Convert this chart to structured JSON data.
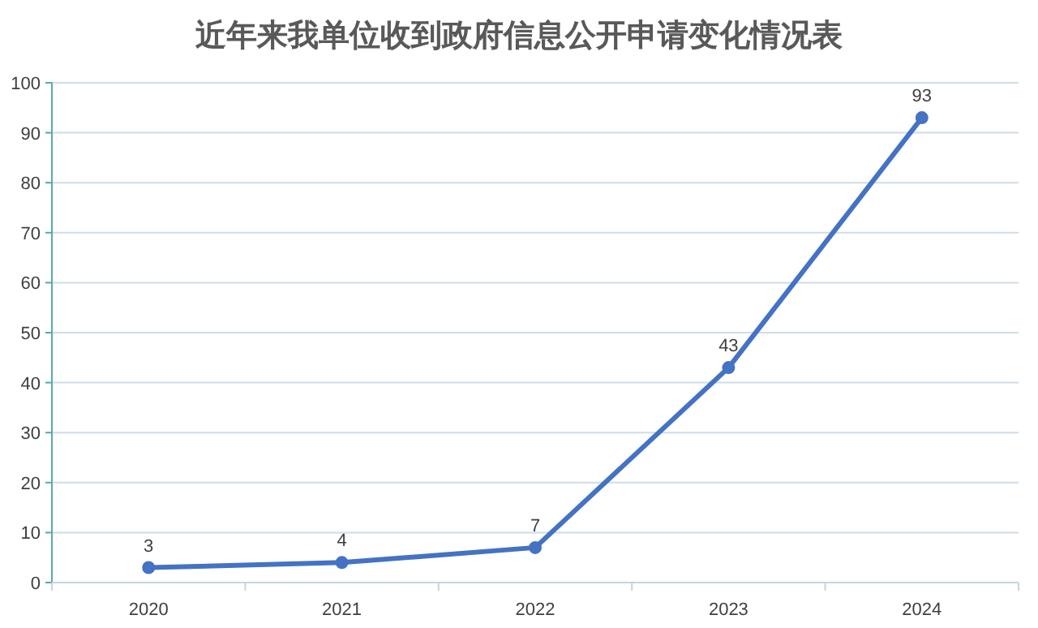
{
  "chart_data": {
    "type": "line",
    "title": "近年来我单位收到政府信息公开申请变化情况表",
    "categories": [
      "2020",
      "2021",
      "2022",
      "2023",
      "2024"
    ],
    "values": [
      3,
      4,
      7,
      43,
      93
    ],
    "color": "#4472c4",
    "ylim": [
      0,
      100
    ],
    "yticks": [
      0,
      10,
      20,
      30,
      40,
      50,
      60,
      70,
      80,
      90,
      100
    ],
    "grid": "y",
    "data_labels": true,
    "marker": "circle",
    "line_style": "solid"
  }
}
